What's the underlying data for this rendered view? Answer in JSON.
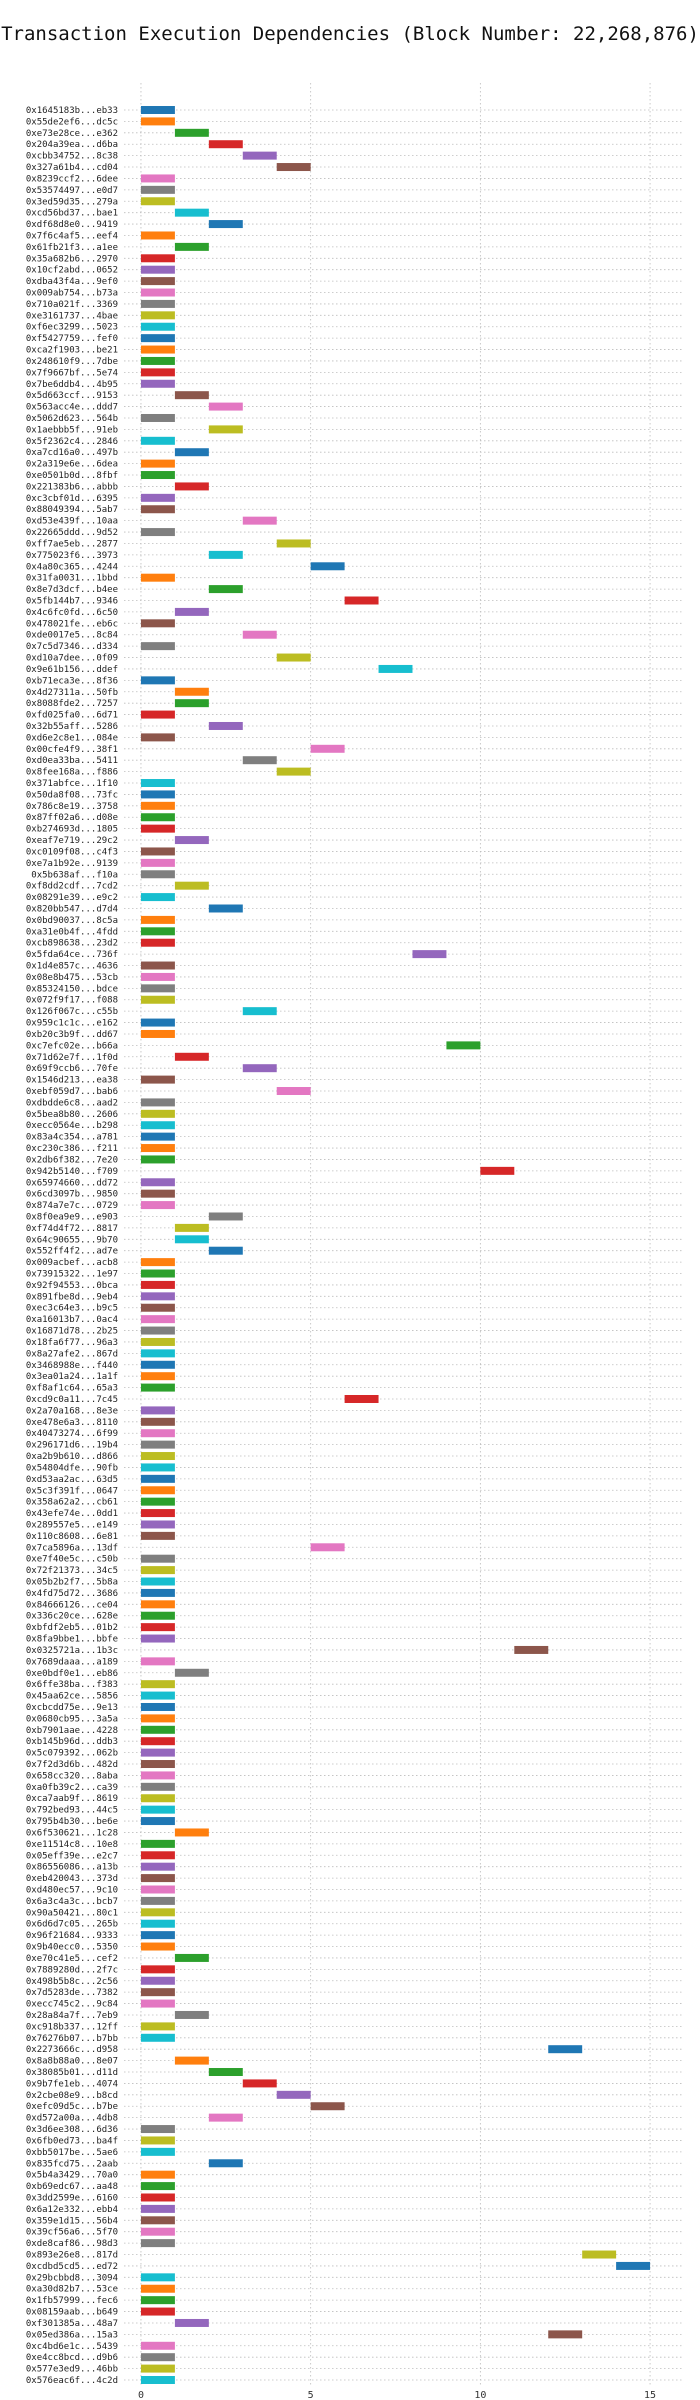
{
  "chart_data": {
    "type": "gantt",
    "title": "Transaction Execution Dependencies (Block Number: 22,268,876)",
    "xlabel": "",
    "ylabel": "",
    "xlim": [
      -0.5,
      16
    ],
    "xticks": [
      0,
      5,
      10,
      15
    ],
    "grid": true,
    "legend": "none",
    "palette": [
      "#1f77b4",
      "#ff7f0e",
      "#2ca02c",
      "#d62728",
      "#9467bd",
      "#8c564b",
      "#e377c2",
      "#7f7f7f",
      "#bcbd22",
      "#17becf"
    ],
    "bar_width": 1,
    "transactions": [
      {
        "label": "0x1645183b...eb33",
        "start": 0,
        "color": 0
      },
      {
        "label": "0x55de2ef6...dc5c",
        "start": 0,
        "color": 1
      },
      {
        "label": "0xe73e28ce...e362",
        "start": 1,
        "color": 2
      },
      {
        "label": "0x204a39ea...d6ba",
        "start": 2,
        "color": 3
      },
      {
        "label": "0xcbb34752...8c38",
        "start": 3,
        "color": 4
      },
      {
        "label": "0x327a61b4...cd04",
        "start": 4,
        "color": 5
      },
      {
        "label": "0x8239ccf2...6dee",
        "start": 0,
        "color": 6
      },
      {
        "label": "0x53574497...e0d7",
        "start": 0,
        "color": 7
      },
      {
        "label": "0x3ed59d35...279a",
        "start": 0,
        "color": 8
      },
      {
        "label": "0xcd56bd37...bae1",
        "start": 1,
        "color": 9
      },
      {
        "label": "0xdf68d8e0...9419",
        "start": 2,
        "color": 0
      },
      {
        "label": "0x7f6c4af5...eef4",
        "start": 0,
        "color": 1
      },
      {
        "label": "0x61fb21f3...a1ee",
        "start": 1,
        "color": 2
      },
      {
        "label": "0x35a682b6...2970",
        "start": 0,
        "color": 3
      },
      {
        "label": "0x10cf2abd...0652",
        "start": 0,
        "color": 4
      },
      {
        "label": "0xdba43f4a...9ef0",
        "start": 0,
        "color": 5
      },
      {
        "label": "0x009ab754...b73a",
        "start": 0,
        "color": 6
      },
      {
        "label": "0x710a021f...3369",
        "start": 0,
        "color": 7
      },
      {
        "label": "0xe3161737...4bae",
        "start": 0,
        "color": 8
      },
      {
        "label": "0xf6ec3299...5023",
        "start": 0,
        "color": 9
      },
      {
        "label": "0xf5427759...fef0",
        "start": 0,
        "color": 0
      },
      {
        "label": "0xca2f1903...be21",
        "start": 0,
        "color": 1
      },
      {
        "label": "0x248610f9...7dbe",
        "start": 0,
        "color": 2
      },
      {
        "label": "0x7f9667bf...5e74",
        "start": 0,
        "color": 3
      },
      {
        "label": "0x7be6ddb4...4b95",
        "start": 0,
        "color": 4
      },
      {
        "label": "0x5d663ccf...9153",
        "start": 1,
        "color": 5
      },
      {
        "label": "0x563acc4e...ddd7",
        "start": 2,
        "color": 6
      },
      {
        "label": "0x5062d623...564b",
        "start": 0,
        "color": 7
      },
      {
        "label": "0x1aebbb5f...91eb",
        "start": 2,
        "color": 8
      },
      {
        "label": "0x5f2362c4...2846",
        "start": 0,
        "color": 9
      },
      {
        "label": "0xa7cd16a0...497b",
        "start": 1,
        "color": 0
      },
      {
        "label": "0x2a319e6e...6dea",
        "start": 0,
        "color": 1
      },
      {
        "label": "0xe0501b0d...8fbf",
        "start": 0,
        "color": 2
      },
      {
        "label": "0x221383b6...abbb",
        "start": 1,
        "color": 3
      },
      {
        "label": "0xc3cbf01d...6395",
        "start": 0,
        "color": 4
      },
      {
        "label": "0x88049394...5ab7",
        "start": 0,
        "color": 5
      },
      {
        "label": "0xd53e439f...10aa",
        "start": 3,
        "color": 6
      },
      {
        "label": "0x22665ddd...9d52",
        "start": 0,
        "color": 7
      },
      {
        "label": "0xff7ae5eb...2877",
        "start": 4,
        "color": 8
      },
      {
        "label": "0x775023f6...3973",
        "start": 2,
        "color": 9
      },
      {
        "label": "0x4a80c365...4244",
        "start": 5,
        "color": 0
      },
      {
        "label": "0x31fa0031...1bbd",
        "start": 0,
        "color": 1
      },
      {
        "label": "0x8e7d3dcf...b4ee",
        "start": 2,
        "color": 2
      },
      {
        "label": "0x5fb144b7...9346",
        "start": 6,
        "color": 3
      },
      {
        "label": "0x4c6fc0fd...6c50",
        "start": 1,
        "color": 4
      },
      {
        "label": "0x478021fe...eb6c",
        "start": 0,
        "color": 5
      },
      {
        "label": "0xde0017e5...8c84",
        "start": 3,
        "color": 6
      },
      {
        "label": "0x7c5d7346...d334",
        "start": 0,
        "color": 7
      },
      {
        "label": "0xd10a7dee...0f09",
        "start": 4,
        "color": 8
      },
      {
        "label": "0x9e61b156...ddef",
        "start": 7,
        "color": 9
      },
      {
        "label": "0xb71eca3e...8f36",
        "start": 0,
        "color": 0
      },
      {
        "label": "0x4d27311a...50fb",
        "start": 1,
        "color": 1
      },
      {
        "label": "0x8088fde2...7257",
        "start": 1,
        "color": 2
      },
      {
        "label": "0xfd025fa0...6d71",
        "start": 0,
        "color": 3
      },
      {
        "label": "0x32b55aff...5286",
        "start": 2,
        "color": 4
      },
      {
        "label": "0xd6e2c8e1...084e",
        "start": 0,
        "color": 5
      },
      {
        "label": "0x00cfe4f9...38f1",
        "start": 5,
        "color": 6
      },
      {
        "label": "0xd0ea33ba...5411",
        "start": 3,
        "color": 7
      },
      {
        "label": "0x8fee168a...f886",
        "start": 4,
        "color": 8
      },
      {
        "label": "0x371abfce...1f10",
        "start": 0,
        "color": 9
      },
      {
        "label": "0x50da8f08...73fc",
        "start": 0,
        "color": 0
      },
      {
        "label": "0x786c8e19...3758",
        "start": 0,
        "color": 1
      },
      {
        "label": "0x87ff02a6...d08e",
        "start": 0,
        "color": 2
      },
      {
        "label": "0xb274693d...1805",
        "start": 0,
        "color": 3
      },
      {
        "label": "0xeaf7e719...29c2",
        "start": 1,
        "color": 4
      },
      {
        "label": "0xc0109f08...c4f3",
        "start": 0,
        "color": 5
      },
      {
        "label": "0xe7a1b92e...9139",
        "start": 0,
        "color": 6
      },
      {
        "label": "0x5b638af...f10a",
        "start": 0,
        "color": 7
      },
      {
        "label": "0xf8dd2cdf...7cd2",
        "start": 1,
        "color": 8
      },
      {
        "label": "0x08291e39...e9c2",
        "start": 0,
        "color": 9
      },
      {
        "label": "0x820bb547...d7d4",
        "start": 2,
        "color": 0
      },
      {
        "label": "0x0bd90037...8c5a",
        "start": 0,
        "color": 1
      },
      {
        "label": "0xa31e0b4f...4fdd",
        "start": 0,
        "color": 2
      },
      {
        "label": "0xcb898638...23d2",
        "start": 0,
        "color": 3
      },
      {
        "label": "0x5fda64ce...736f",
        "start": 8,
        "color": 4
      },
      {
        "label": "0x1d4e857c...4636",
        "start": 0,
        "color": 5
      },
      {
        "label": "0x08e8b475...53cb",
        "start": 0,
        "color": 6
      },
      {
        "label": "0x85324150...bdce",
        "start": 0,
        "color": 7
      },
      {
        "label": "0x072f9f17...f088",
        "start": 0,
        "color": 8
      },
      {
        "label": "0x126f067c...c55b",
        "start": 3,
        "color": 9
      },
      {
        "label": "0x959c1c1c...e162",
        "start": 0,
        "color": 0
      },
      {
        "label": "0xb20c3b9f...dd67",
        "start": 0,
        "color": 1
      },
      {
        "label": "0xc7efc02e...b66a",
        "start": 9,
        "color": 2
      },
      {
        "label": "0x71d62e7f...1f0d",
        "start": 1,
        "color": 3
      },
      {
        "label": "0x69f9ccb6...70fe",
        "start": 3,
        "color": 4
      },
      {
        "label": "0x1546d213...ea38",
        "start": 0,
        "color": 5
      },
      {
        "label": "0xebf059d7...bab6",
        "start": 4,
        "color": 6
      },
      {
        "label": "0xdbdde6c8...aad2",
        "start": 0,
        "color": 7
      },
      {
        "label": "0x5bea8b80...2606",
        "start": 0,
        "color": 8
      },
      {
        "label": "0xecc0564e...b298",
        "start": 0,
        "color": 9
      },
      {
        "label": "0x83a4c354...a781",
        "start": 0,
        "color": 0
      },
      {
        "label": "0xc230c386...f211",
        "start": 0,
        "color": 1
      },
      {
        "label": "0x2db6f382...7e20",
        "start": 0,
        "color": 2
      },
      {
        "label": "0x942b5140...f709",
        "start": 10,
        "color": 3
      },
      {
        "label": "0x65974660...dd72",
        "start": 0,
        "color": 4
      },
      {
        "label": "0x6cd3097b...9850",
        "start": 0,
        "color": 5
      },
      {
        "label": "0x874a7e7c...0729",
        "start": 0,
        "color": 6
      },
      {
        "label": "0x8f0ea9e9...e903",
        "start": 2,
        "color": 7
      },
      {
        "label": "0xf74d4f72...8817",
        "start": 1,
        "color": 8
      },
      {
        "label": "0x64c90655...9b70",
        "start": 1,
        "color": 9
      },
      {
        "label": "0x552ff4f2...ad7e",
        "start": 2,
        "color": 0
      },
      {
        "label": "0x009acbef...acb8",
        "start": 0,
        "color": 1
      },
      {
        "label": "0x73915322...1e97",
        "start": 0,
        "color": 2
      },
      {
        "label": "0x92f94553...0bca",
        "start": 0,
        "color": 3
      },
      {
        "label": "0x891fbe8d...9eb4",
        "start": 0,
        "color": 4
      },
      {
        "label": "0xec3c64e3...b9c5",
        "start": 0,
        "color": 5
      },
      {
        "label": "0xa16013b7...0ac4",
        "start": 0,
        "color": 6
      },
      {
        "label": "0x16871d78...2b25",
        "start": 0,
        "color": 7
      },
      {
        "label": "0x18fa6f77...96a3",
        "start": 0,
        "color": 8
      },
      {
        "label": "0x8a27afe2...867d",
        "start": 0,
        "color": 9
      },
      {
        "label": "0x3468988e...f440",
        "start": 0,
        "color": 0
      },
      {
        "label": "0x3ea01a24...1a1f",
        "start": 0,
        "color": 1
      },
      {
        "label": "0xf8af1c64...65a3",
        "start": 0,
        "color": 2
      },
      {
        "label": "0xcd9c0a11...7c45",
        "start": 6,
        "color": 3
      },
      {
        "label": "0x2a70a168...8e3e",
        "start": 0,
        "color": 4
      },
      {
        "label": "0xe478e6a3...8110",
        "start": 0,
        "color": 5
      },
      {
        "label": "0x40473274...6f99",
        "start": 0,
        "color": 6
      },
      {
        "label": "0x296171d6...19b4",
        "start": 0,
        "color": 7
      },
      {
        "label": "0xa2b9b610...d866",
        "start": 0,
        "color": 8
      },
      {
        "label": "0x54804dfe...90fb",
        "start": 0,
        "color": 9
      },
      {
        "label": "0xd53aa2ac...63d5",
        "start": 0,
        "color": 0
      },
      {
        "label": "0x5c3f391f...0647",
        "start": 0,
        "color": 1
      },
      {
        "label": "0x358a62a2...cb61",
        "start": 0,
        "color": 2
      },
      {
        "label": "0x43efe74e...0dd1",
        "start": 0,
        "color": 3
      },
      {
        "label": "0x289557e5...e149",
        "start": 0,
        "color": 4
      },
      {
        "label": "0x110c8608...6e81",
        "start": 0,
        "color": 5
      },
      {
        "label": "0x7ca5896a...13df",
        "start": 5,
        "color": 6
      },
      {
        "label": "0xe7f40e5c...c50b",
        "start": 0,
        "color": 7
      },
      {
        "label": "0x72f21373...34c5",
        "start": 0,
        "color": 8
      },
      {
        "label": "0x05b2b2f7...5b8a",
        "start": 0,
        "color": 9
      },
      {
        "label": "0x4fd75d72...3686",
        "start": 0,
        "color": 0
      },
      {
        "label": "0x84666126...ce04",
        "start": 0,
        "color": 1
      },
      {
        "label": "0x336c20ce...628e",
        "start": 0,
        "color": 2
      },
      {
        "label": "0xbfdf2eb5...01b2",
        "start": 0,
        "color": 3
      },
      {
        "label": "0x8fa9bbe1...bbfe",
        "start": 0,
        "color": 4
      },
      {
        "label": "0x0325721a...1b3c",
        "start": 11,
        "color": 5
      },
      {
        "label": "0x7689daaa...a189",
        "start": 0,
        "color": 6
      },
      {
        "label": "0xe0bdf0e1...eb86",
        "start": 1,
        "color": 7
      },
      {
        "label": "0x6ffe38ba...f383",
        "start": 0,
        "color": 8
      },
      {
        "label": "0x45aa62ce...5856",
        "start": 0,
        "color": 9
      },
      {
        "label": "0xcbcdd75e...9e13",
        "start": 0,
        "color": 0
      },
      {
        "label": "0x0680cb95...3a5a",
        "start": 0,
        "color": 1
      },
      {
        "label": "0xb7901aae...4228",
        "start": 0,
        "color": 2
      },
      {
        "label": "0xb145b96d...ddb3",
        "start": 0,
        "color": 3
      },
      {
        "label": "0x5c079392...062b",
        "start": 0,
        "color": 4
      },
      {
        "label": "0x7f2d3d6b...482d",
        "start": 0,
        "color": 5
      },
      {
        "label": "0x658cc320...8aba",
        "start": 0,
        "color": 6
      },
      {
        "label": "0xa0fb39c2...ca39",
        "start": 0,
        "color": 7
      },
      {
        "label": "0xca7aab9f...8619",
        "start": 0,
        "color": 8
      },
      {
        "label": "0x792bed93...44c5",
        "start": 0,
        "color": 9
      },
      {
        "label": "0x795b4b30...be6e",
        "start": 0,
        "color": 0
      },
      {
        "label": "0x6f530621...1c28",
        "start": 1,
        "color": 1
      },
      {
        "label": "0xe11514c8...10e8",
        "start": 0,
        "color": 2
      },
      {
        "label": "0x05eff39e...e2c7",
        "start": 0,
        "color": 3
      },
      {
        "label": "0x86556086...a13b",
        "start": 0,
        "color": 4
      },
      {
        "label": "0xeb420043...373d",
        "start": 0,
        "color": 5
      },
      {
        "label": "0xd480ec57...9c10",
        "start": 0,
        "color": 6
      },
      {
        "label": "0x6a3c4a3c...bcb7",
        "start": 0,
        "color": 7
      },
      {
        "label": "0x90a50421...80c1",
        "start": 0,
        "color": 8
      },
      {
        "label": "0x6d6d7c05...265b",
        "start": 0,
        "color": 9
      },
      {
        "label": "0x96f21684...9333",
        "start": 0,
        "color": 0
      },
      {
        "label": "0x9b40ecc0...5350",
        "start": 0,
        "color": 1
      },
      {
        "label": "0xe70c41e5...cef2",
        "start": 1,
        "color": 2
      },
      {
        "label": "0x7889280d...2f7c",
        "start": 0,
        "color": 3
      },
      {
        "label": "0x498b5b8c...2c56",
        "start": 0,
        "color": 4
      },
      {
        "label": "0x7d5283de...7382",
        "start": 0,
        "color": 5
      },
      {
        "label": "0xecc745c2...9c84",
        "start": 0,
        "color": 6
      },
      {
        "label": "0x28a84a7f...7eb9",
        "start": 1,
        "color": 7
      },
      {
        "label": "0xc918b337...12ff",
        "start": 0,
        "color": 8
      },
      {
        "label": "0x76276b07...b7bb",
        "start": 0,
        "color": 9
      },
      {
        "label": "0x2273666c...d958",
        "start": 12,
        "color": 0
      },
      {
        "label": "0x8a8b88a0...8e07",
        "start": 1,
        "color": 1
      },
      {
        "label": "0x38085b01...d11d",
        "start": 2,
        "color": 2
      },
      {
        "label": "0x9b7fe1eb...4074",
        "start": 3,
        "color": 3
      },
      {
        "label": "0x2cbe08e9...b8cd",
        "start": 4,
        "color": 4
      },
      {
        "label": "0xefc09d5c...b7be",
        "start": 5,
        "color": 5
      },
      {
        "label": "0xd572a00a...4db8",
        "start": 2,
        "color": 6
      },
      {
        "label": "0x3d6ee308...6d36",
        "start": 0,
        "color": 7
      },
      {
        "label": "0x6fb0ed73...ba4f",
        "start": 0,
        "color": 8
      },
      {
        "label": "0xbb5017be...5ae6",
        "start": 0,
        "color": 9
      },
      {
        "label": "0x835fcd75...2aab",
        "start": 2,
        "color": 0
      },
      {
        "label": "0x5b4a3429...70a0",
        "start": 0,
        "color": 1
      },
      {
        "label": "0xb69edc67...aa48",
        "start": 0,
        "color": 2
      },
      {
        "label": "0x3dd2599e...6160",
        "start": 0,
        "color": 3
      },
      {
        "label": "0x6a12e332...ebb4",
        "start": 0,
        "color": 4
      },
      {
        "label": "0x359e1d15...56b4",
        "start": 0,
        "color": 5
      },
      {
        "label": "0x39cf56a6...5f70",
        "start": 0,
        "color": 6
      },
      {
        "label": "0xde8caf86...98d3",
        "start": 0,
        "color": 7
      },
      {
        "label": "0x893e26e8...817d",
        "start": 13,
        "color": 8
      },
      {
        "label": "0xcdbd5cd5...ed72",
        "start": 14,
        "color": 0
      },
      {
        "label": "0x29bcbbd8...3094",
        "start": 0,
        "color": 9
      },
      {
        "label": "0xa30d82b7...53ce",
        "start": 0,
        "color": 1
      },
      {
        "label": "0x1fb57999...fec6",
        "start": 0,
        "color": 2
      },
      {
        "label": "0x08159aab...b649",
        "start": 0,
        "color": 3
      },
      {
        "label": "0xf301385a...48a7",
        "start": 1,
        "color": 4
      },
      {
        "label": "0x05ed386a...15a3",
        "start": 12,
        "color": 5
      },
      {
        "label": "0xc4bd6e1c...5439",
        "start": 0,
        "color": 6
      },
      {
        "label": "0xe4cc8bcd...d9b6",
        "start": 0,
        "color": 7
      },
      {
        "label": "0x577e3ed9...46bb",
        "start": 0,
        "color": 8
      },
      {
        "label": "0x576eac6f...4c2d",
        "start": 0,
        "color": 9
      }
    ]
  }
}
